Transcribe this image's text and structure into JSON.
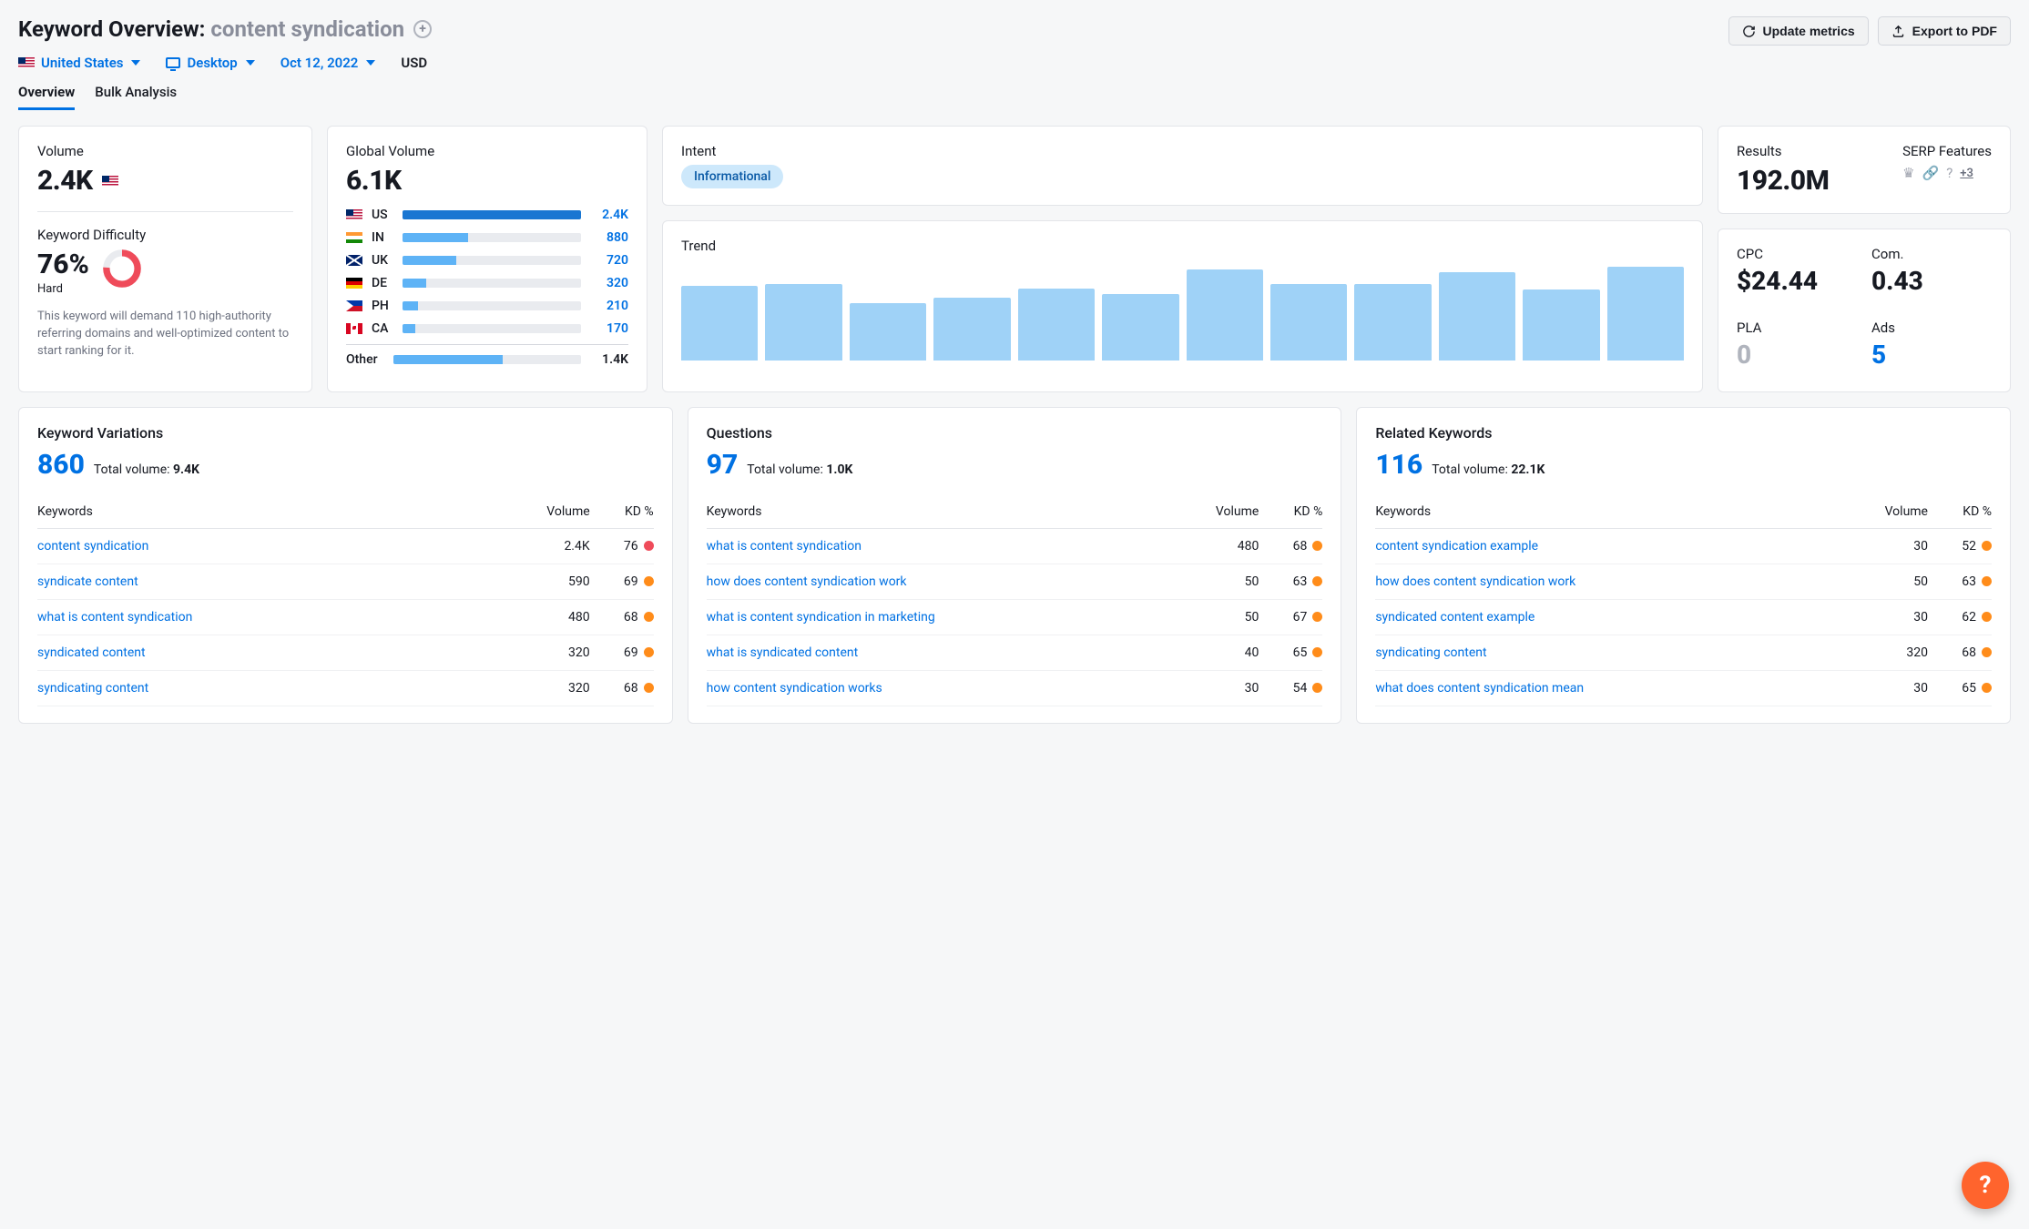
{
  "header": {
    "title_prefix": "Keyword Overview:",
    "keyword": "content syndication",
    "update_label": "Update metrics",
    "export_label": "Export to PDF"
  },
  "filters": {
    "country": "United States",
    "device": "Desktop",
    "date": "Oct 12, 2022",
    "currency": "USD"
  },
  "tabs": {
    "overview": "Overview",
    "bulk": "Bulk Analysis"
  },
  "volume": {
    "label": "Volume",
    "value": "2.4K"
  },
  "kd": {
    "label": "Keyword Difficulty",
    "value": "76%",
    "level": "Hard",
    "desc": "This keyword will demand 110 high-authority referring domains and well-optimized content to start ranking for it.",
    "donut_pct": 76,
    "donut_color": "#ef4b5a",
    "donut_track": "#e9ebef"
  },
  "global_volume": {
    "label": "Global Volume",
    "value": "6.1K",
    "max": 2400,
    "countries": [
      {
        "flag": "us",
        "code": "US",
        "val": 2400,
        "disp": "2.4K",
        "color": "#1976d2"
      },
      {
        "flag": "in",
        "code": "IN",
        "val": 880,
        "disp": "880",
        "color": "#5eb3f6"
      },
      {
        "flag": "uk",
        "code": "UK",
        "val": 720,
        "disp": "720",
        "color": "#5eb3f6"
      },
      {
        "flag": "de",
        "code": "DE",
        "val": 320,
        "disp": "320",
        "color": "#5eb3f6"
      },
      {
        "flag": "ph",
        "code": "PH",
        "val": 210,
        "disp": "210",
        "color": "#5eb3f6"
      },
      {
        "flag": "ca",
        "code": "CA",
        "val": 170,
        "disp": "170",
        "color": "#5eb3f6"
      }
    ],
    "other_label": "Other",
    "other_val": 1400,
    "other_disp": "1.4K"
  },
  "intent": {
    "label": "Intent",
    "value": "Informational"
  },
  "trend": {
    "label": "Trend",
    "bars": [
      78,
      80,
      60,
      66,
      75,
      70,
      95,
      80,
      80,
      92,
      74,
      98
    ],
    "bar_color": "#9fd2f7"
  },
  "results": {
    "label": "Results",
    "value": "192.0M"
  },
  "serp": {
    "label": "SERP Features",
    "more": "+3"
  },
  "cpc": {
    "label": "CPC",
    "value": "$24.44"
  },
  "com": {
    "label": "Com.",
    "value": "0.43"
  },
  "pla": {
    "label": "PLA",
    "value": "0"
  },
  "ads": {
    "label": "Ads",
    "value": "5"
  },
  "table_headers": {
    "kw": "Keywords",
    "vol": "Volume",
    "kd": "KD %"
  },
  "kd_colors": {
    "red": "#ef4b5a",
    "orange": "#ff8c1a"
  },
  "variations": {
    "title": "Keyword Variations",
    "count": "860",
    "total_label": "Total volume:",
    "total": "9.4K",
    "rows": [
      {
        "kw": "content syndication",
        "vol": "2.4K",
        "kd": "76",
        "dot": "red"
      },
      {
        "kw": "syndicate content",
        "vol": "590",
        "kd": "69",
        "dot": "orange"
      },
      {
        "kw": "what is content syndication",
        "vol": "480",
        "kd": "68",
        "dot": "orange"
      },
      {
        "kw": "syndicated content",
        "vol": "320",
        "kd": "69",
        "dot": "orange"
      },
      {
        "kw": "syndicating content",
        "vol": "320",
        "kd": "68",
        "dot": "orange"
      }
    ]
  },
  "questions": {
    "title": "Questions",
    "count": "97",
    "total_label": "Total volume:",
    "total": "1.0K",
    "rows": [
      {
        "kw": "what is content syndication",
        "vol": "480",
        "kd": "68",
        "dot": "orange"
      },
      {
        "kw": "how does content syndication work",
        "vol": "50",
        "kd": "63",
        "dot": "orange"
      },
      {
        "kw": "what is content syndication in marketing",
        "vol": "50",
        "kd": "67",
        "dot": "orange"
      },
      {
        "kw": "what is syndicated content",
        "vol": "40",
        "kd": "65",
        "dot": "orange"
      },
      {
        "kw": "how content syndication works",
        "vol": "30",
        "kd": "54",
        "dot": "orange"
      }
    ]
  },
  "related": {
    "title": "Related Keywords",
    "count": "116",
    "total_label": "Total volume:",
    "total": "22.1K",
    "rows": [
      {
        "kw": "content syndication example",
        "vol": "30",
        "kd": "52",
        "dot": "orange"
      },
      {
        "kw": "how does content syndication work",
        "vol": "50",
        "kd": "63",
        "dot": "orange"
      },
      {
        "kw": "syndicated content example",
        "vol": "30",
        "kd": "62",
        "dot": "orange"
      },
      {
        "kw": "syndicating content",
        "vol": "320",
        "kd": "68",
        "dot": "orange"
      },
      {
        "kw": "what does content syndication mean",
        "vol": "30",
        "kd": "65",
        "dot": "orange"
      }
    ]
  }
}
